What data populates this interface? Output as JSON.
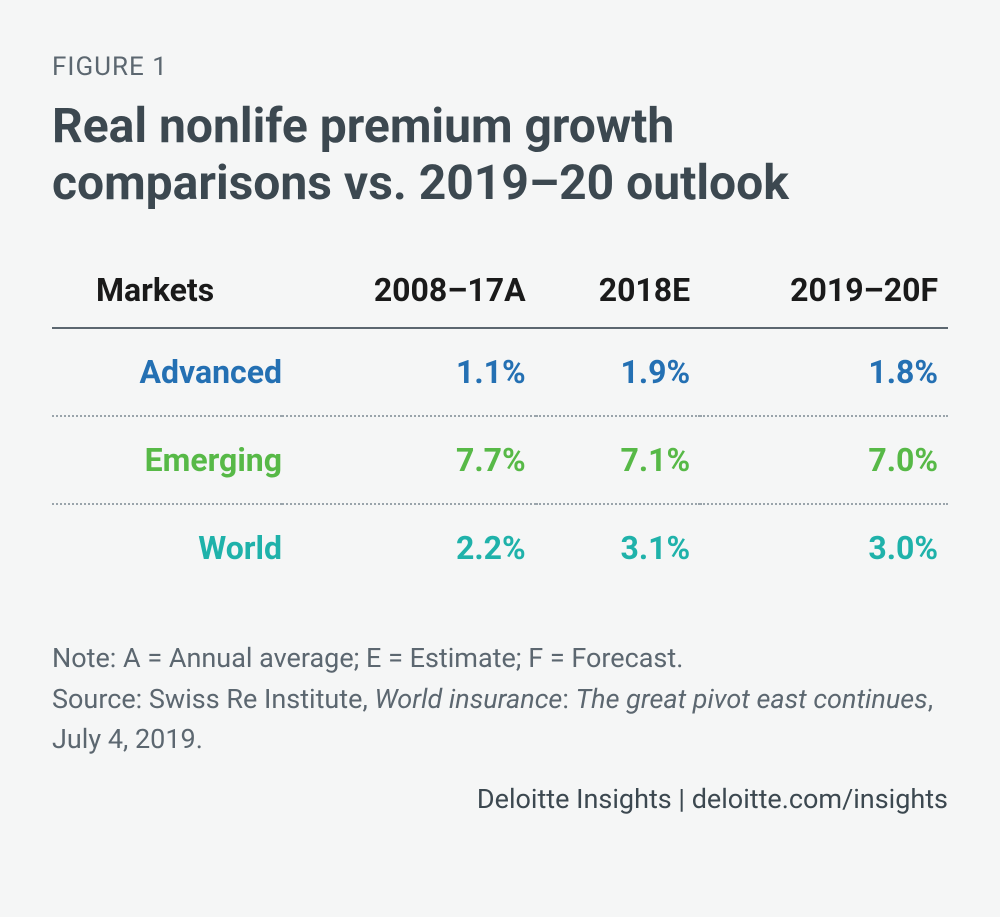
{
  "figure_label": "FIGURE 1",
  "title": "Real nonlife premium growth comparisons vs. 2019–20 outlook",
  "table": {
    "columns": [
      "Markets",
      "2008–17A",
      "2018E",
      "2019–20F"
    ],
    "rows": [
      {
        "label": "Advanced",
        "color": "#2470b3",
        "values": [
          "1.1%",
          "1.9%",
          "1.8%"
        ]
      },
      {
        "label": "Emerging",
        "color": "#57b947",
        "values": [
          "7.7%",
          "7.1%",
          "7.0%"
        ]
      },
      {
        "label": "World",
        "color": "#1fb2aa",
        "values": [
          "2.2%",
          "3.1%",
          "3.0%"
        ]
      }
    ],
    "header_color": "#1a1a1a",
    "header_border_color": "#5c6770",
    "row_border_color": "#9aa4ab",
    "cell_fontsize": 32
  },
  "note": "Note: A = Annual average; E = Estimate; F = Forecast.",
  "source": {
    "prefix": "Source: Swiss Re Institute, ",
    "italic1": "World insurance",
    "sep": ": ",
    "italic2": "The great pivot east continues",
    "suffix": ", July 4, 2019."
  },
  "attribution": "Deloitte Insights | deloitte.com/insights",
  "colors": {
    "background": "#f5f6f6",
    "label_text": "#5c6770",
    "title_text": "#3c4850"
  }
}
